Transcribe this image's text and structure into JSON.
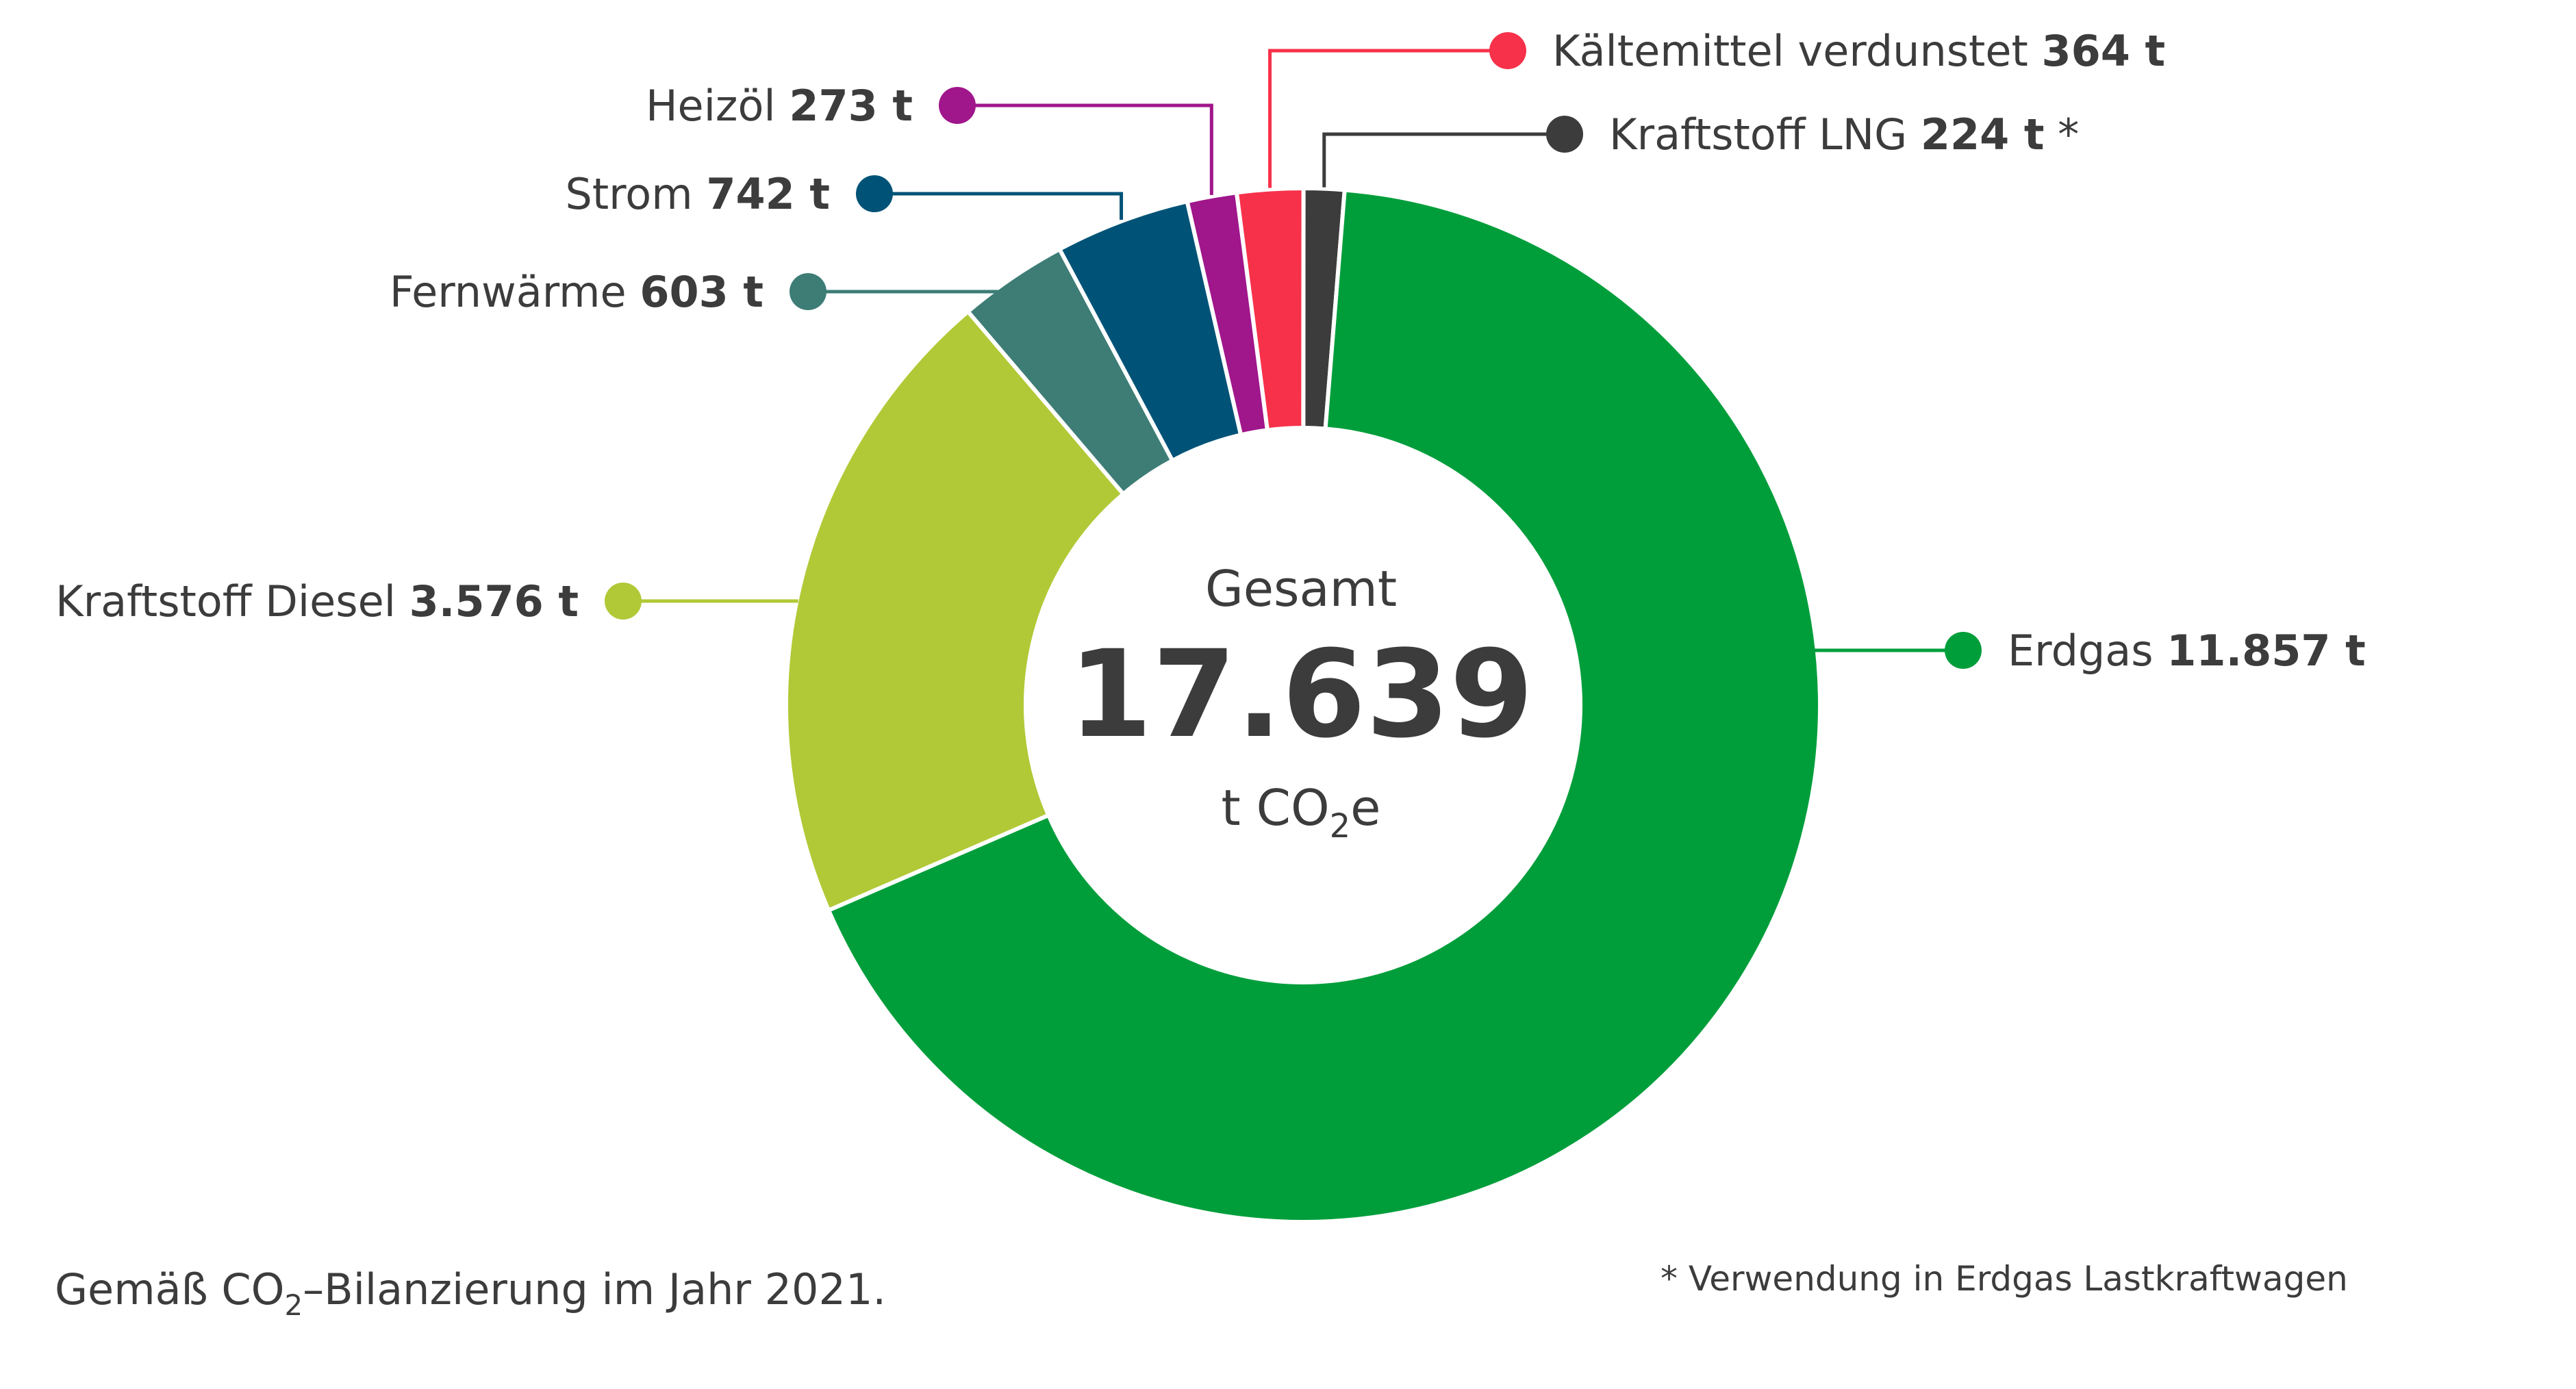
{
  "chart_data": {
    "type": "pie",
    "variant": "donut",
    "total": {
      "label": "Gesamt",
      "value": "17.639",
      "unit_prefix": "t CO",
      "unit_sub": "2",
      "unit_suffix": "e",
      "numeric": 17639
    },
    "unit": "t",
    "series": [
      {
        "name": "Kraftstoff LNG",
        "value": 224,
        "value_label": "224 t",
        "suffix": " *",
        "color": "#3c3c3c"
      },
      {
        "name": "Erdgas",
        "value": 11857,
        "value_label": "11.857 t",
        "suffix": "",
        "color": "#009e3b"
      },
      {
        "name": "Kraftstoff Diesel",
        "value": 3576,
        "value_label": "3.576 t",
        "suffix": "",
        "color": "#b1c936"
      },
      {
        "name": "Fernwärme",
        "value": 603,
        "value_label": "603 t",
        "suffix": "",
        "color": "#3d7d76"
      },
      {
        "name": "Strom",
        "value": 742,
        "value_label": "742 t",
        "suffix": "",
        "color": "#005377"
      },
      {
        "name": "Heizöl",
        "value": 273,
        "value_label": "273 t",
        "suffix": "",
        "color": "#a0168b"
      },
      {
        "name": "Kältemittel verdunstet",
        "value": 364,
        "value_label": "364 t",
        "suffix": "",
        "color": "#f7314a"
      }
    ]
  },
  "footnote": {
    "main_prefix": "Gemäß CO",
    "main_sub": "2",
    "main_suffix": "–Bilanzierung im Jahr 2021.",
    "asterisk": "* Verwendung in Erdgas Lastkraftwagen"
  }
}
